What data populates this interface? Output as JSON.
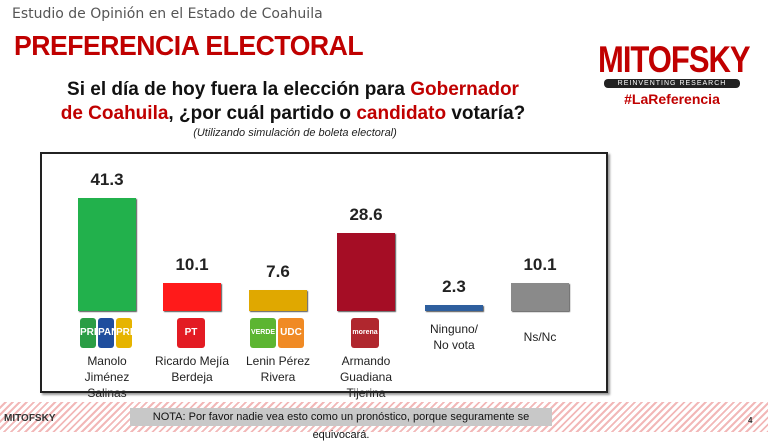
{
  "header": {
    "subtitle": "Estudio de Opinión en el Estado de Coahuila",
    "title": "PREFERENCIA ELECTORAL",
    "question": {
      "p1": "Si el día de hoy fuera la elección para ",
      "p2": "Gobernador de Coahuila",
      "p3": ", ¿por cuál partido o ",
      "p4": "candidato",
      "p5": " votaría?"
    },
    "note": "(Utilizando simulación de boleta electoral)"
  },
  "logo": {
    "name": "MITOFSKY",
    "tagline": "REINVENTING RESEARCH",
    "hashtag": "#LaReferencia"
  },
  "chart_data": {
    "type": "bar",
    "ylim": [
      0,
      45
    ],
    "grid": false,
    "categories": [
      "Manolo Jiménez Salinas",
      "Ricardo Mejía Berdeja",
      "Lenin Pérez Rivera",
      "Armando Guadiana Tijerina",
      "Ninguno/ No vota",
      "Ns/Nc"
    ],
    "values": [
      41.3,
      10.1,
      7.6,
      28.6,
      2.3,
      10.1
    ],
    "labels": [
      "41.3",
      "10.1",
      "7.6",
      "28.6",
      "2.3",
      "10.1"
    ],
    "colors": [
      "#22b14c",
      "#ff1a1a",
      "#e0a800",
      "#a50d25",
      "#2e5f9e",
      "#8a8a8a"
    ],
    "parties": [
      [
        "PRI",
        "PAN",
        "PRD"
      ],
      [
        "PT"
      ],
      [
        "VERDE",
        "UDC"
      ],
      [
        "morena"
      ],
      [],
      []
    ]
  },
  "footer": {
    "note": "NOTA: Por favor nadie vea esto como un pronóstico, porque seguramente se equivocará.",
    "logo": "MITOFSKY",
    "page": "4"
  }
}
